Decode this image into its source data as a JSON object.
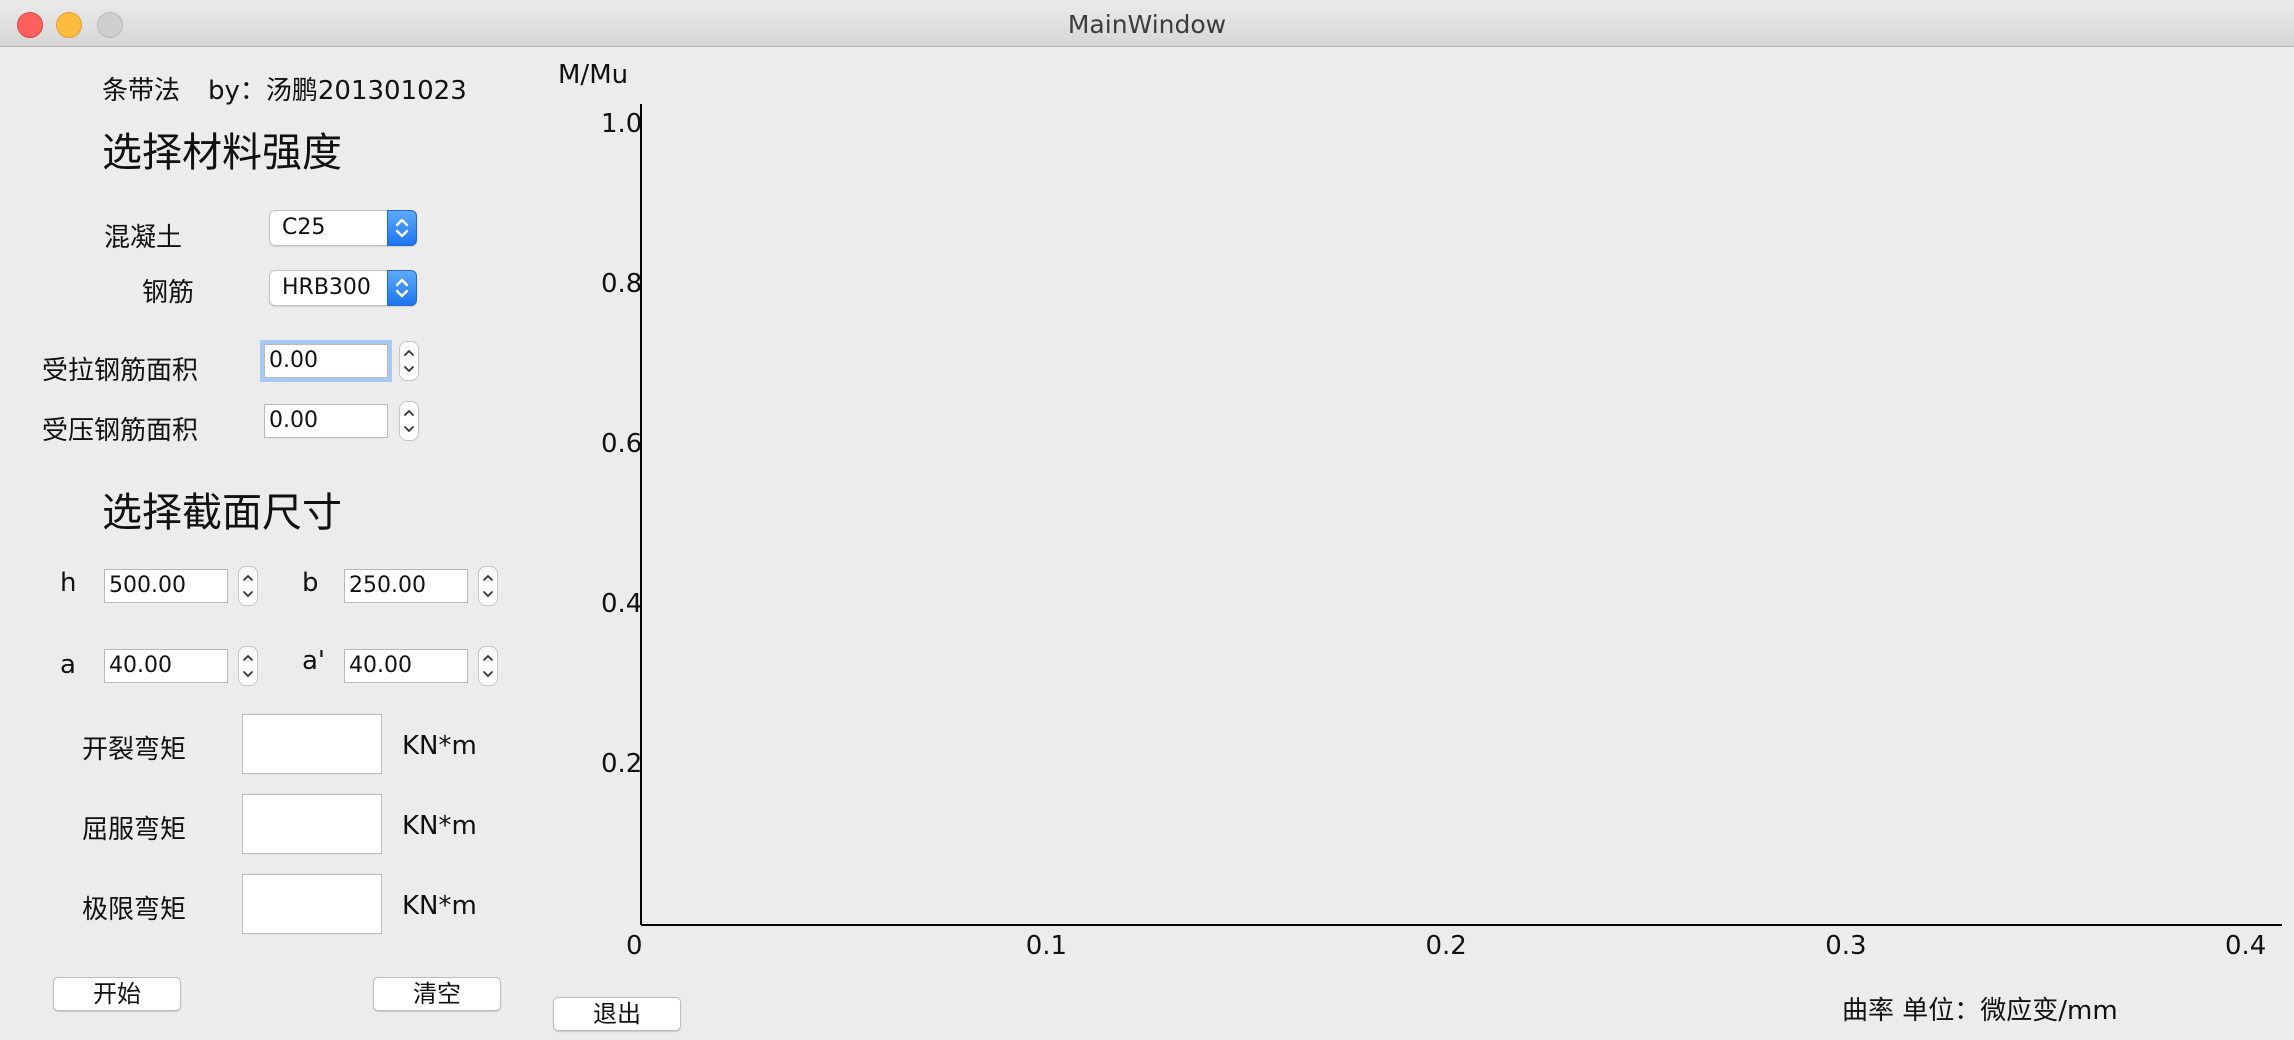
{
  "window": {
    "title": "MainWindow"
  },
  "panel": {
    "app_label": "条带法",
    "author_label": "by：汤鹏201301023",
    "material_heading": "选择材料强度",
    "concrete_label": "混凝土",
    "concrete_value": "C25",
    "steel_label": "钢筋",
    "steel_value": "HRB300",
    "tension_area_label": "受拉钢筋面积",
    "tension_area_value": "0.00",
    "compression_area_label": "受压钢筋面积",
    "compression_area_value": "0.00",
    "section_heading": "选择截面尺寸",
    "h_label": "h",
    "h_value": "500.00",
    "b_label": "b",
    "b_value": "250.00",
    "a_label": "a",
    "a_value": "40.00",
    "a_prime_label": "a'",
    "a_prime_value": "40.00",
    "crack_label": "开裂弯矩",
    "yield_label": "屈服弯矩",
    "ultimate_label": "极限弯矩",
    "unit_label": "KN*m",
    "crack_value": "",
    "yield_value": "",
    "ultimate_value": ""
  },
  "buttons": {
    "start": "开始",
    "clear": "清空",
    "exit": "退出"
  },
  "chart_data": {
    "type": "line",
    "title": "",
    "ylabel": "M/Mu",
    "xlabel": "曲率 单位：微应变/mm",
    "xlim": [
      0,
      0.4
    ],
    "ylim": [
      0,
      1.0
    ],
    "x_ticks": [
      "0",
      "0.1",
      "0.2",
      "0.3",
      "0.4"
    ],
    "y_ticks": [
      "0.2",
      "0.4",
      "0.6",
      "0.8",
      "1.0"
    ],
    "series": []
  }
}
